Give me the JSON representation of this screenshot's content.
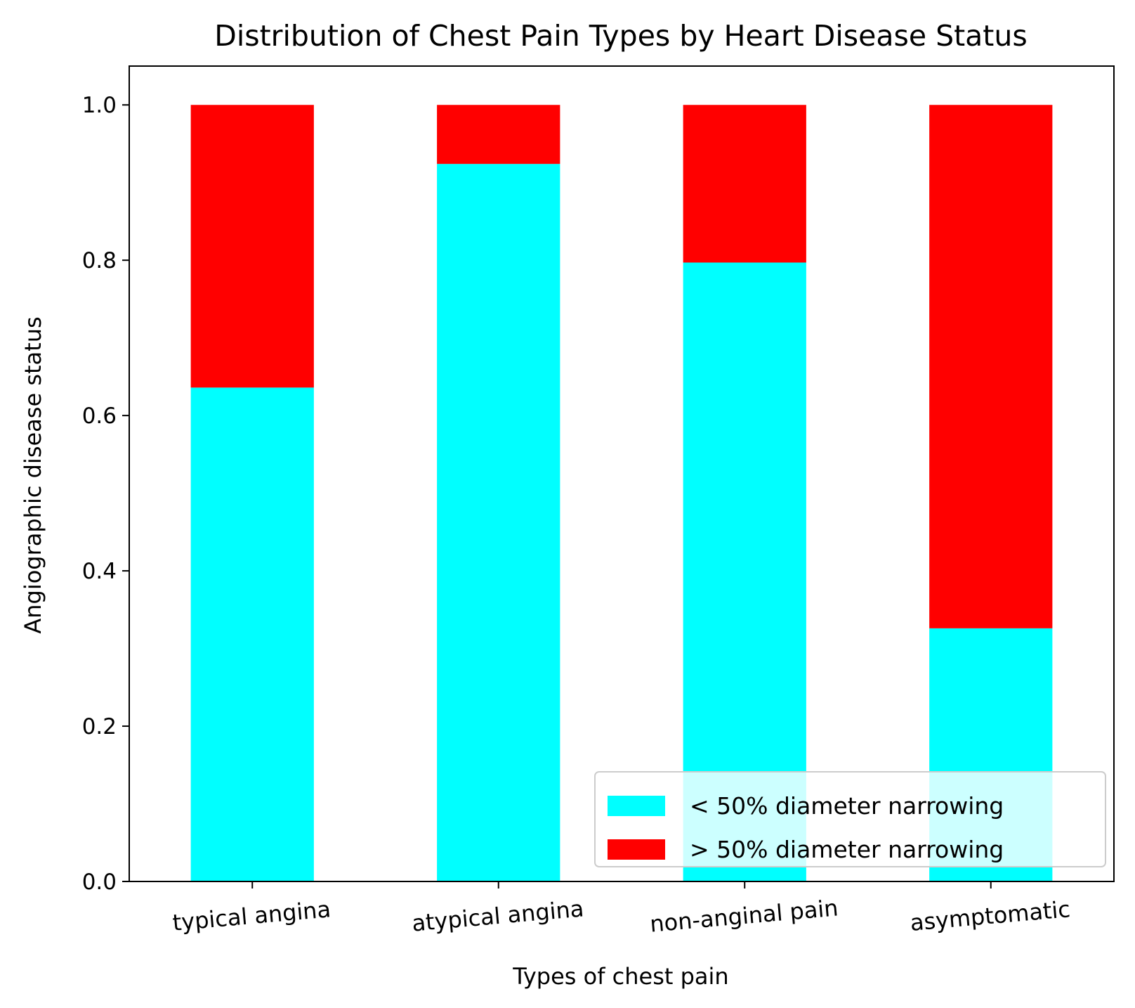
{
  "chart_data": {
    "type": "bar",
    "stacked": true,
    "title": "Distribution of Chest Pain Types by Heart Disease Status",
    "xlabel": "Types of chest pain",
    "ylabel": "Angiographic disease status",
    "categories": [
      "typical angina",
      "atypical angina",
      "non-anginal pain",
      "asymptomatic"
    ],
    "series": [
      {
        "name": "< 50% diameter narrowing",
        "color": "#00ffff",
        "values": [
          0.636,
          0.924,
          0.797,
          0.326
        ]
      },
      {
        "name": "> 50% diameter narrowing",
        "color": "#ff0000",
        "values": [
          0.364,
          0.076,
          0.203,
          0.674
        ]
      }
    ],
    "ylim": [
      0,
      1.05
    ],
    "yticks": [
      "0.0",
      "0.2",
      "0.4",
      "0.6",
      "0.8",
      "1.0"
    ],
    "grid": false,
    "legend_position": "lower-right"
  }
}
